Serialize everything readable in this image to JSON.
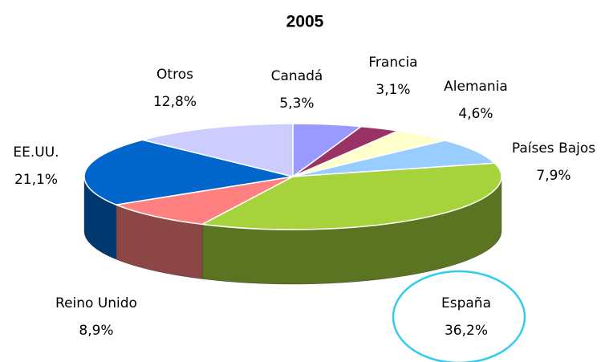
{
  "chart_data": {
    "type": "pie",
    "title": "2005",
    "categories": [
      "Canadá",
      "Francia",
      "Alemania",
      "Países Bajos",
      "España",
      "Reino Unido",
      "EE.UU.",
      "Otros"
    ],
    "values": [
      5.3,
      3.1,
      4.6,
      7.9,
      36.2,
      8.9,
      21.1,
      12.8
    ],
    "value_labels": [
      "5,3%",
      "3,1%",
      "4,6%",
      "7,9%",
      "36,2%",
      "8,9%",
      "21,1%",
      "12,8%"
    ],
    "colors": [
      "#9999ff",
      "#993366",
      "#ffffcc",
      "#99ccff",
      "#a6d23c",
      "#ff8080",
      "#0066cc",
      "#ccccff"
    ]
  }
}
